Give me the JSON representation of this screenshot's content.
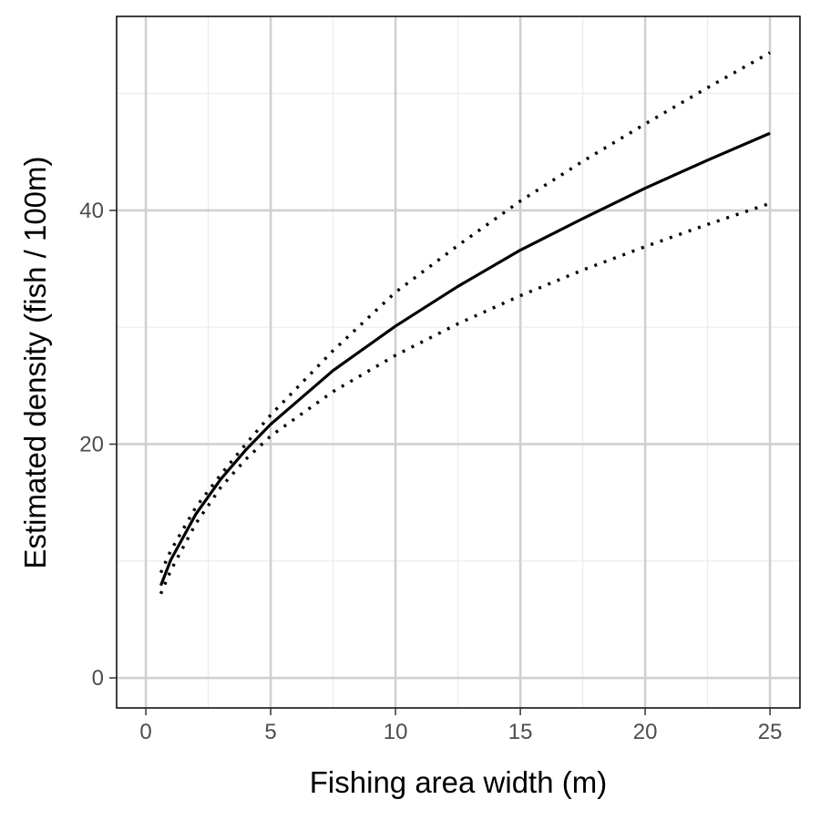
{
  "chart_data": {
    "type": "line",
    "x_label": "Fishing area width (m)",
    "y_label": "Estimated density (fish / 100m)",
    "x": [
      0.6,
      1,
      2,
      3,
      4,
      5,
      7.5,
      10,
      12.5,
      15,
      17.5,
      20,
      22.5,
      25
    ],
    "series": [
      {
        "color": "#000000",
        "style": "solid",
        "values": [
          7.9,
          10.1,
          14.0,
          17.0,
          19.5,
          21.7,
          26.3,
          30.1,
          33.5,
          36.6,
          39.3,
          41.9,
          44.3,
          46.6
        ]
      },
      {
        "color": "#000000",
        "style": "dotted",
        "values": [
          9.0,
          10.9,
          14.6,
          17.4,
          20.0,
          22.5,
          28.0,
          33.0,
          37.0,
          40.8,
          44.2,
          47.4,
          50.5,
          53.5
        ]
      },
      {
        "color": "#000000",
        "style": "dotted",
        "values": [
          7.2,
          9.2,
          13.2,
          16.3,
          18.7,
          20.7,
          24.5,
          27.6,
          30.3,
          32.7,
          34.9,
          36.9,
          38.8,
          40.6
        ]
      }
    ],
    "xlim": [
      -1.17,
      26.2
    ],
    "ylim": [
      -2.57,
      56.6
    ],
    "xticks": [
      0,
      5,
      10,
      15,
      20,
      25
    ],
    "yticks": [
      0,
      20,
      40
    ],
    "grid": true
  }
}
